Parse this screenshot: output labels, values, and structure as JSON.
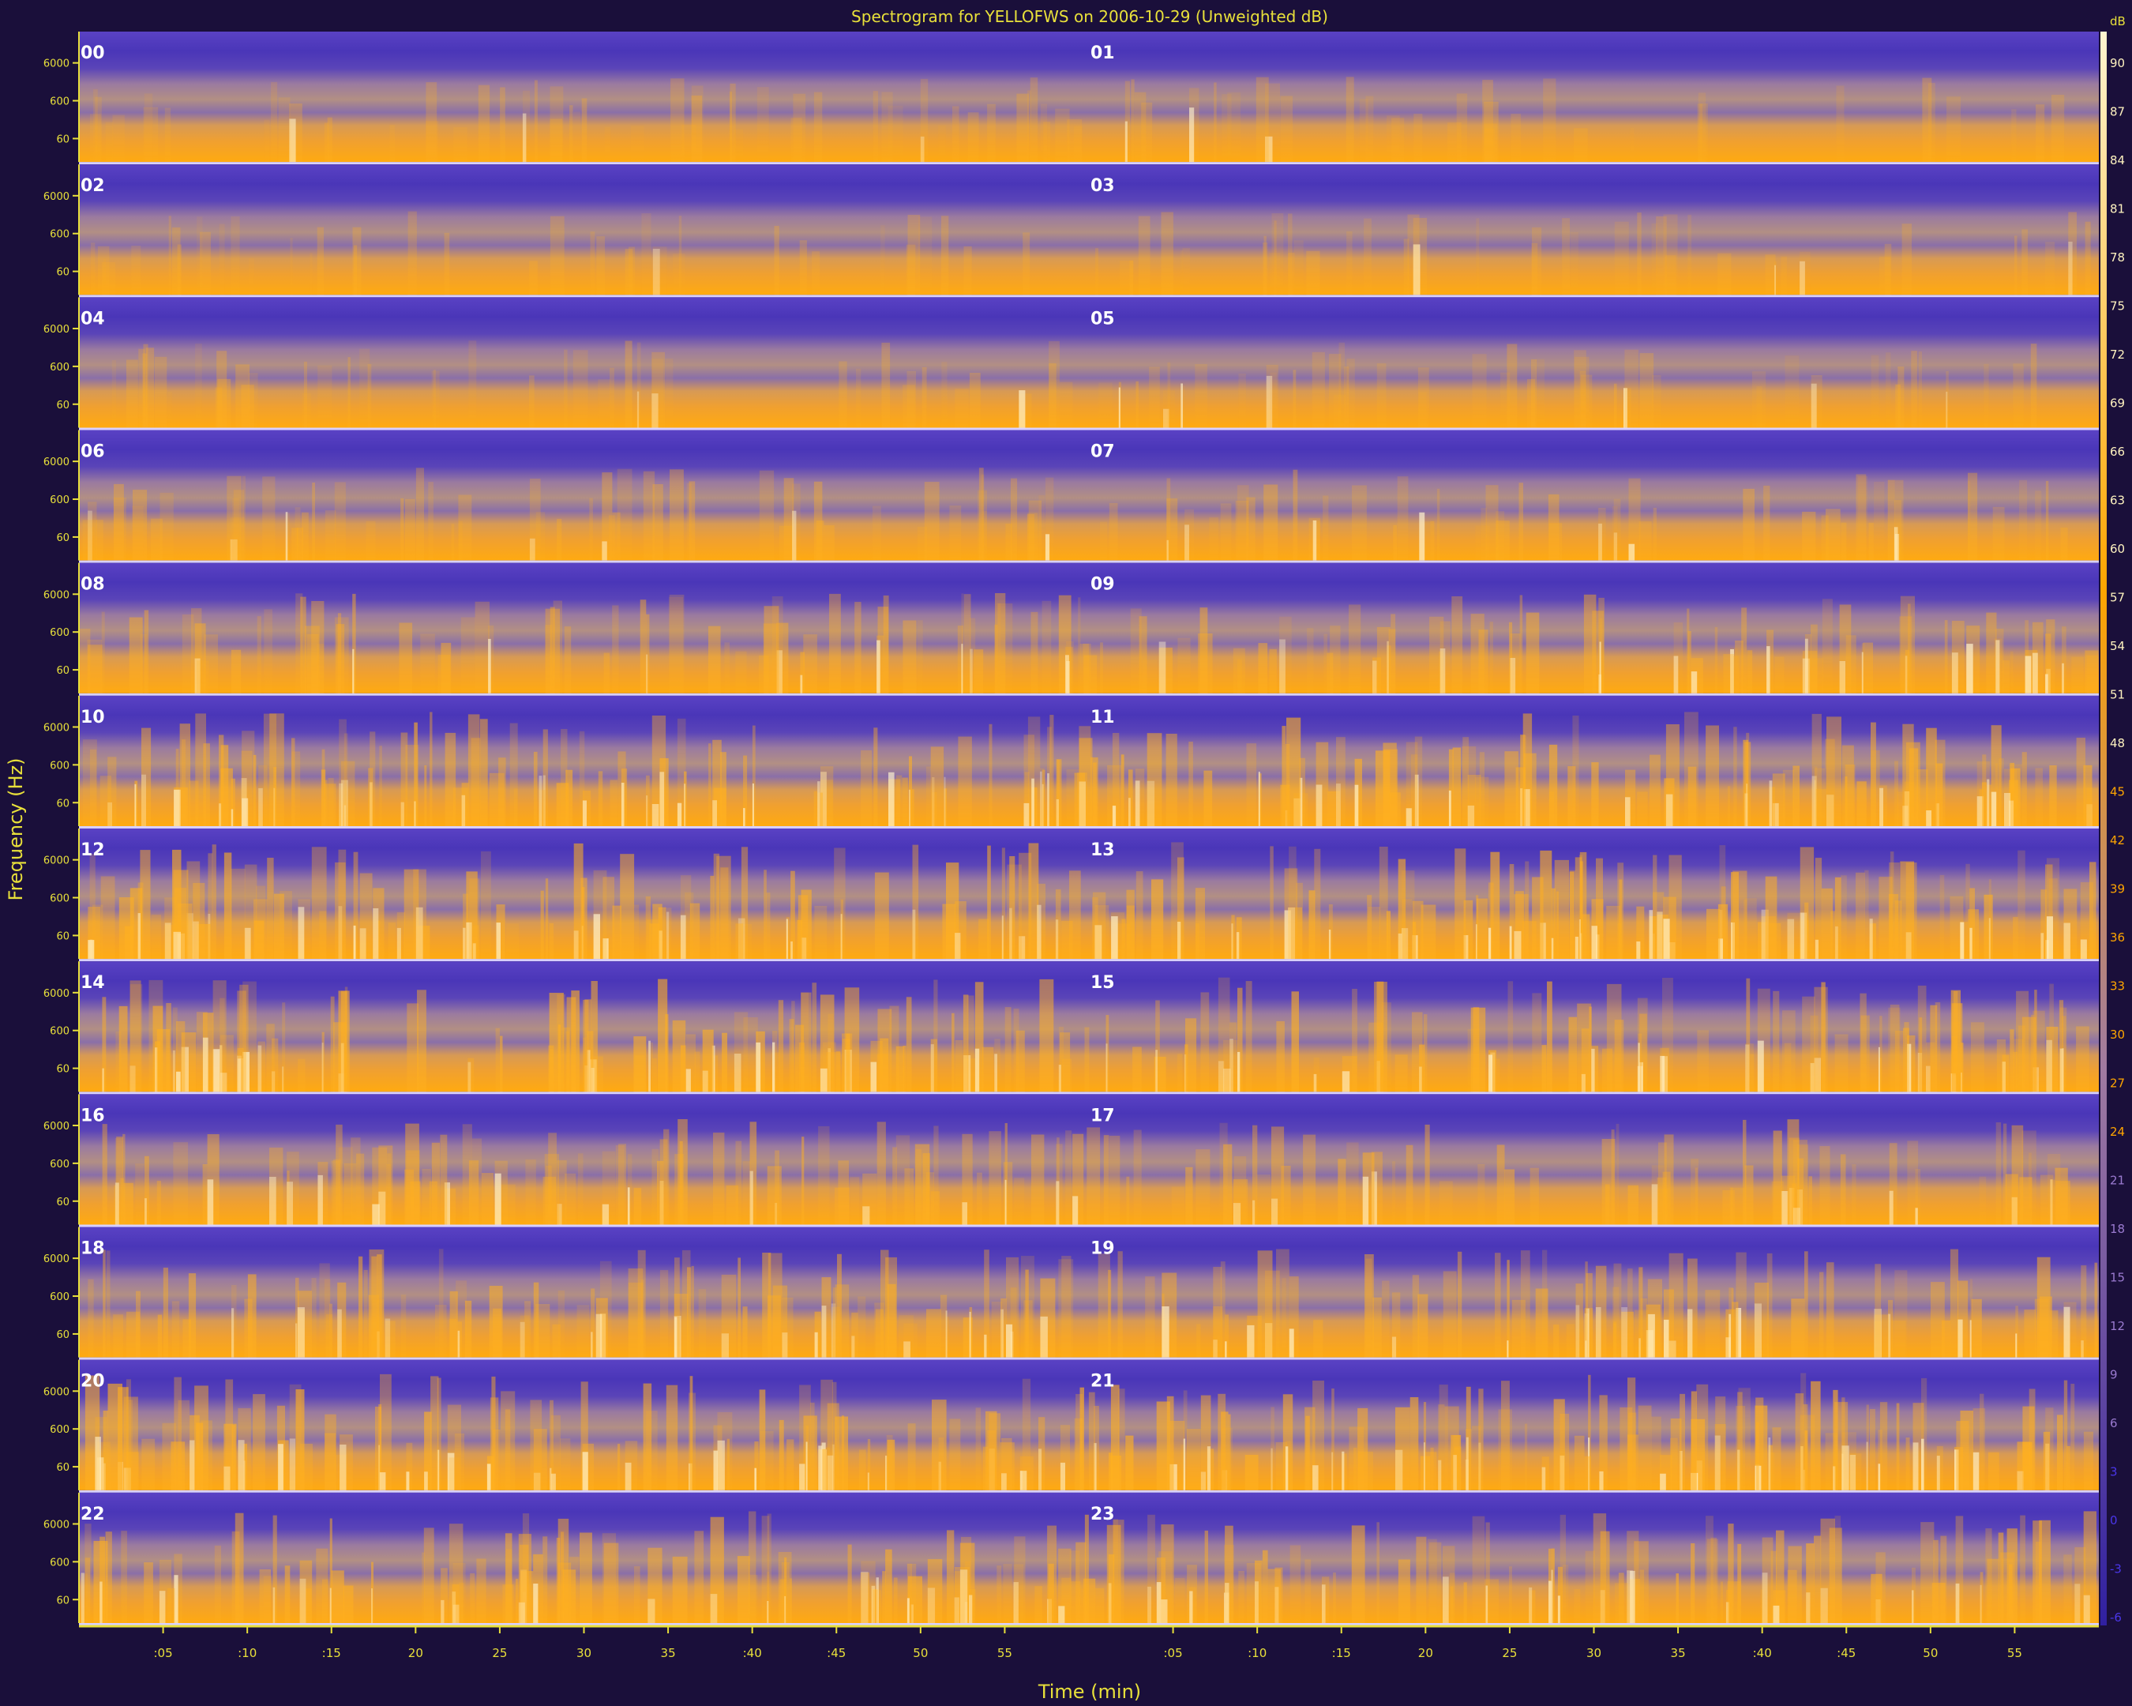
{
  "chart_data": {
    "type": "heatmap",
    "title": "Spectrogram for YELLOFWS on 2006-10-29 (Unweighted dB)",
    "xlabel": "Time (min)",
    "ylabel": "Frequency (Hz)",
    "colorbar_unit": "dB",
    "hour_labels": [
      "00",
      "01",
      "02",
      "03",
      "04",
      "05",
      "06",
      "07",
      "08",
      "09",
      "10",
      "11",
      "12",
      "13",
      "14",
      "15",
      "16",
      "17",
      "18",
      "19",
      "20",
      "21",
      "22",
      "23"
    ],
    "x_tick_labels": [
      ":05",
      ":10",
      ":15",
      "20",
      "25",
      "30",
      "35",
      ":40",
      ":45",
      "50",
      "55"
    ],
    "y_tick_labels": [
      "6000",
      "600",
      "60"
    ],
    "colorbar_ticks": [
      90,
      87,
      84,
      81,
      78,
      75,
      72,
      69,
      66,
      63,
      60,
      57,
      54,
      51,
      48,
      45,
      42,
      39,
      36,
      33,
      30,
      27,
      24,
      21,
      18,
      15,
      12,
      9,
      6,
      3,
      0,
      -3,
      -6
    ],
    "colors": {
      "background": "#1a0f3a",
      "text": "#e8e03a",
      "low": "#4a36b8",
      "mid": "#c09060",
      "high": "#ffa500",
      "peak": "#fff4d0"
    },
    "row_activity": [
      0.15,
      0.12,
      0.17,
      0.28,
      0.45,
      0.7,
      0.74,
      0.7,
      0.52,
      0.58,
      0.76,
      0.66
    ]
  }
}
